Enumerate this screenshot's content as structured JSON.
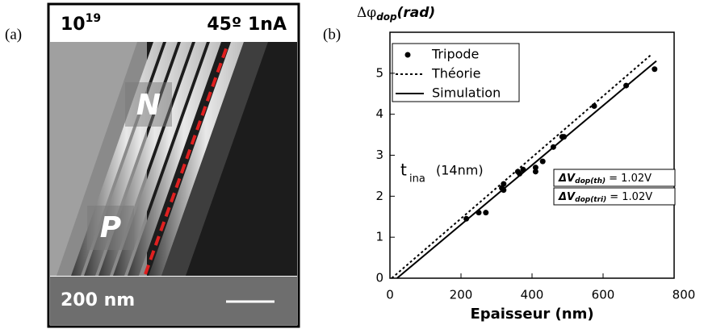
{
  "panel_a": {
    "label": "(a)",
    "doping_base": "10",
    "doping_exp": "19",
    "conditions": "45º 1nA",
    "region_n": "N",
    "region_p": "P",
    "scale": "200 nm"
  },
  "panel_b_label": "(b)",
  "chart_data": {
    "type": "scatter-line",
    "ylabel": {
      "main": "Δφ",
      "sub": "dop",
      "unit": "(rad)"
    },
    "xlabel": "Epaisseur (nm)",
    "xlim": [
      0,
      800
    ],
    "xticks": [
      0,
      200,
      400,
      600,
      800
    ],
    "ylim": [
      0,
      6
    ],
    "yticks": [
      0,
      1,
      2,
      3,
      4,
      5
    ],
    "series": [
      {
        "name": "Tripode",
        "style": "points",
        "color": "#000000",
        "x": [
          215,
          250,
          270,
          315,
          320,
          320,
          360,
          365,
          375,
          410,
          410,
          430,
          460,
          485,
          490,
          575,
          665,
          745
        ],
        "values": [
          1.45,
          1.6,
          1.6,
          2.2,
          2.3,
          2.15,
          2.6,
          2.55,
          2.65,
          2.7,
          2.6,
          2.85,
          3.2,
          3.45,
          3.45,
          4.2,
          4.7,
          5.1
        ]
      },
      {
        "name": "Théorie",
        "style": "dotted",
        "color": "#000000",
        "x": [
          5,
          735
        ],
        "values": [
          0,
          5.45
        ]
      },
      {
        "name": "Simulation",
        "style": "solid",
        "color": "#000000",
        "x": [
          20,
          750
        ],
        "values": [
          0,
          5.3
        ]
      }
    ],
    "annotations": {
      "t_main": "t",
      "t_sub": "ina",
      "t_value": "(14nm)",
      "box_th": {
        "prefix": "ΔV",
        "sub": "dop(th)",
        "value": "= 1.02V"
      },
      "box_tri": {
        "prefix": "ΔV",
        "sub": "dop(tri)",
        "value": "= 1.02V"
      }
    }
  }
}
